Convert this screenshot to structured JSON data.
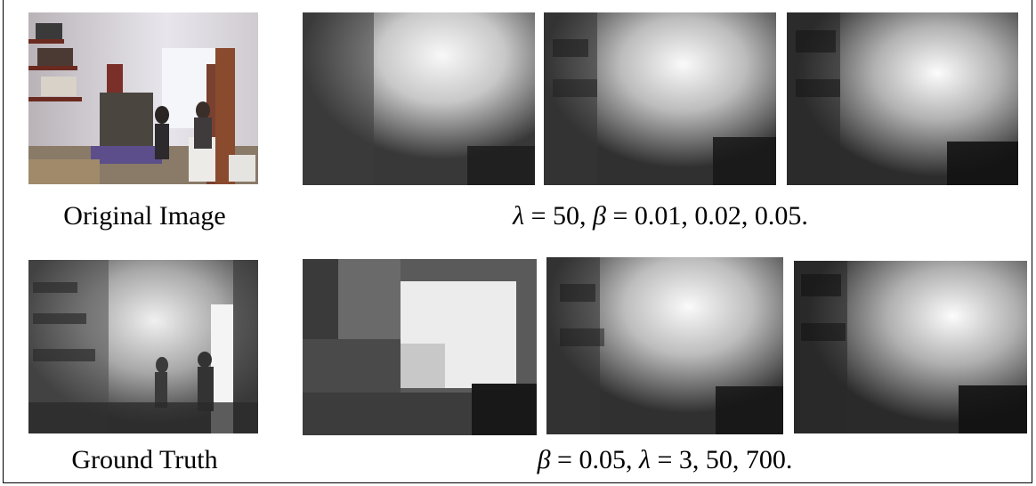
{
  "figure": {
    "row1": {
      "left_caption": "Original Image",
      "right_caption": {
        "sym1": "λ",
        "eq1": " = 50, ",
        "sym2": "β",
        "eq2": " = 0.01, 0.02, 0.05."
      }
    },
    "row2": {
      "left_caption": "Ground Truth",
      "right_caption": {
        "sym1": "β",
        "eq1": " = 0.05, ",
        "sym2": "λ",
        "eq2": " = 3, 50, 700."
      }
    }
  },
  "colors": {
    "text": "#000000",
    "border": "#000000",
    "depth_dark": "#1a1a1a",
    "depth_light": "#f4f4f4"
  }
}
